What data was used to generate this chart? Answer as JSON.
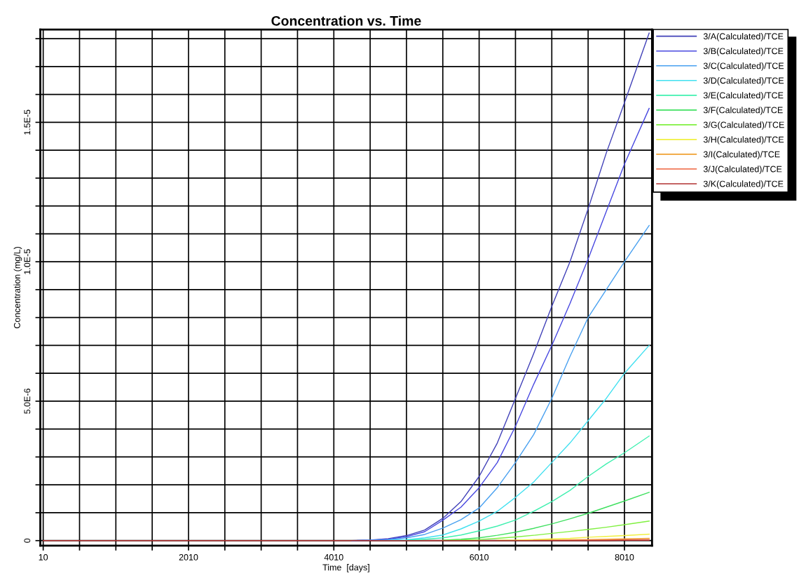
{
  "chart_data": {
    "type": "line",
    "title": "Concentration vs. Time",
    "xlabel": "Time  [days]",
    "ylabel": "Concentration (mg/L)",
    "x": [
      10,
      4260,
      4510,
      4760,
      5010,
      5260,
      5510,
      5760,
      6010,
      6260,
      6510,
      6760,
      7010,
      7260,
      7510,
      7760,
      8010,
      8350
    ],
    "xlim": [
      -30,
      8390
    ],
    "ylim": [
      -1.8e-07,
      1.833e-05
    ],
    "xticks": [
      {
        "value": 10,
        "label": "10"
      },
      {
        "value": 510,
        "label": null
      },
      {
        "value": 1010,
        "label": null
      },
      {
        "value": 1510,
        "label": null
      },
      {
        "value": 2010,
        "label": "2010"
      },
      {
        "value": 2510,
        "label": null
      },
      {
        "value": 3010,
        "label": null
      },
      {
        "value": 3510,
        "label": null
      },
      {
        "value": 4010,
        "label": "4010"
      },
      {
        "value": 4510,
        "label": null
      },
      {
        "value": 5010,
        "label": null
      },
      {
        "value": 5510,
        "label": null
      },
      {
        "value": 6010,
        "label": "6010"
      },
      {
        "value": 6510,
        "label": null
      },
      {
        "value": 7010,
        "label": null
      },
      {
        "value": 7510,
        "label": null
      },
      {
        "value": 8010,
        "label": "8010"
      }
    ],
    "yticks": [
      {
        "value": 0,
        "label": "0"
      },
      {
        "value": 1e-06,
        "label": null
      },
      {
        "value": 2e-06,
        "label": null
      },
      {
        "value": 3e-06,
        "label": null
      },
      {
        "value": 4e-06,
        "label": null
      },
      {
        "value": 5e-06,
        "label": "5.0E-6"
      },
      {
        "value": 6e-06,
        "label": null
      },
      {
        "value": 7e-06,
        "label": null
      },
      {
        "value": 8e-06,
        "label": null
      },
      {
        "value": 9e-06,
        "label": null
      },
      {
        "value": 1e-05,
        "label": "1.0E-5"
      },
      {
        "value": 1.1e-05,
        "label": null
      },
      {
        "value": 1.2e-05,
        "label": null
      },
      {
        "value": 1.3e-05,
        "label": null
      },
      {
        "value": 1.4e-05,
        "label": null
      },
      {
        "value": 1.5e-05,
        "label": "1.5E-5"
      },
      {
        "value": 1.6e-05,
        "label": null
      },
      {
        "value": 1.7e-05,
        "label": null
      },
      {
        "value": 1.8e-05,
        "label": null
      }
    ],
    "grid": true,
    "legend": "top right",
    "marker": "none",
    "line_style": "solid",
    "series": [
      {
        "name": "3/A(Calculated)/TCE",
        "color": "#4040b8",
        "values": [
          null,
          0,
          2e-08,
          7e-08,
          1.8e-07,
          3.8e-07,
          8e-07,
          1.4e-06,
          2.3e-06,
          3.5e-06,
          5.1e-06,
          6.7e-06,
          8.4e-06,
          1e-05,
          1.19e-05,
          1.39e-05,
          1.57e-05,
          1.82e-05
        ]
      },
      {
        "name": "3/B(Calculated)/TCE",
        "color": "#4848e0",
        "values": [
          null,
          0,
          1e-08,
          5e-08,
          1.4e-07,
          3.2e-07,
          7.3e-07,
          1.2e-06,
          1.9e-06,
          2.8e-06,
          4.1e-06,
          5.6e-06,
          7e-06,
          8.5e-06,
          1.01e-05,
          1.18e-05,
          1.35e-05,
          1.55e-05
        ]
      },
      {
        "name": "3/C(Calculated)/TCE",
        "color": "#48a0f0",
        "values": [
          null,
          0,
          1e-08,
          3e-08,
          1e-07,
          2.2e-07,
          4.5e-07,
          7.5e-07,
          1.17e-06,
          1.9e-06,
          2.8e-06,
          3.8e-06,
          5.1e-06,
          6.6e-06,
          8e-06,
          9e-06,
          1e-05,
          1.13e-05
        ]
      },
      {
        "name": "3/D(Calculated)/TCE",
        "color": "#40e0f0",
        "values": [
          null,
          null,
          null,
          1e-08,
          3e-08,
          1e-07,
          2e-07,
          4.2e-07,
          7e-07,
          1.05e-06,
          1.55e-06,
          2.1e-06,
          2.8e-06,
          3.5e-06,
          4.3e-06,
          5.1e-06,
          6e-06,
          7e-06
        ]
      },
      {
        "name": "3/E(Calculated)/TCE",
        "color": "#40f0b0",
        "values": [
          null,
          null,
          null,
          null,
          1e-08,
          5e-08,
          1e-07,
          2e-07,
          3.5e-07,
          5.2e-07,
          7.4e-07,
          1.05e-06,
          1.4e-06,
          1.8e-06,
          2.3e-06,
          2.75e-06,
          3.15e-06,
          3.75e-06
        ]
      },
      {
        "name": "3/F(Calculated)/TCE",
        "color": "#40e060",
        "values": [
          null,
          null,
          null,
          null,
          null,
          null,
          2e-08,
          5e-08,
          1e-07,
          1.9e-07,
          3e-07,
          4.4e-07,
          6e-07,
          7.8e-07,
          9.8e-07,
          1.2e-06,
          1.42e-06,
          1.73e-06
        ]
      },
      {
        "name": "3/G(Calculated)/TCE",
        "color": "#80f040",
        "values": [
          null,
          null,
          null,
          null,
          null,
          null,
          1e-08,
          2e-08,
          4e-08,
          8e-08,
          1.3e-07,
          1.9e-07,
          2.6e-07,
          3.3e-07,
          4e-07,
          4.8e-07,
          5.7e-07,
          7e-07
        ]
      },
      {
        "name": "3/H(Calculated)/TCE",
        "color": "#f0f040",
        "values": [
          null,
          null,
          null,
          null,
          null,
          null,
          null,
          null,
          null,
          1e-08,
          2e-08,
          4e-08,
          6e-08,
          8e-08,
          1.2e-07,
          1.5e-07,
          1.8e-07,
          2.3e-07
        ]
      },
      {
        "name": "3/I(Calculated)/TCE",
        "color": "#f0a030",
        "values": [
          null,
          null,
          null,
          null,
          null,
          null,
          null,
          null,
          null,
          null,
          null,
          1e-08,
          2e-08,
          3e-08,
          4e-08,
          5e-08,
          6e-08,
          8e-08
        ]
      },
      {
        "name": "3/J(Calculated)/TCE",
        "color": "#f07858",
        "values": [
          null,
          null,
          null,
          null,
          null,
          null,
          null,
          null,
          null,
          null,
          null,
          null,
          1e-08,
          1e-08,
          2e-08,
          2e-08,
          3e-08,
          4e-08
        ]
      },
      {
        "name": "3/K(Calculated)/TCE",
        "color": "#b03030",
        "values": [
          0,
          0,
          0,
          0,
          0,
          0,
          0,
          0,
          0,
          0,
          0,
          0,
          0,
          0,
          0,
          0,
          1e-08,
          1e-08
        ]
      }
    ]
  }
}
